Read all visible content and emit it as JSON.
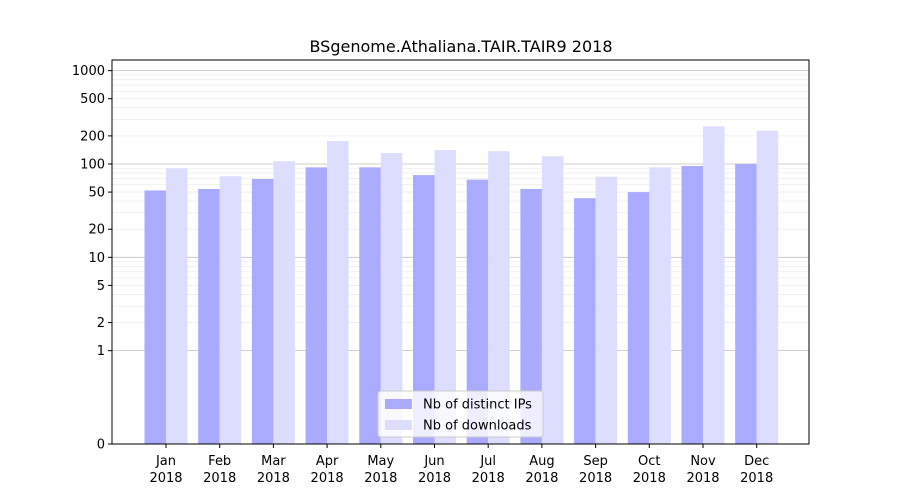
{
  "chart_data": {
    "type": "bar",
    "title": "BSgenome.Athaliana.TAIR.TAIR9 2018",
    "categories": [
      [
        "Jan",
        "2018"
      ],
      [
        "Feb",
        "2018"
      ],
      [
        "Mar",
        "2018"
      ],
      [
        "Apr",
        "2018"
      ],
      [
        "May",
        "2018"
      ],
      [
        "Jun",
        "2018"
      ],
      [
        "Jul",
        "2018"
      ],
      [
        "Aug",
        "2018"
      ],
      [
        "Sep",
        "2018"
      ],
      [
        "Oct",
        "2018"
      ],
      [
        "Nov",
        "2018"
      ],
      [
        "Dec",
        "2018"
      ]
    ],
    "series": [
      {
        "name": "Nb of distinct IPs",
        "color": "#aaaaff",
        "values": [
          52,
          54,
          69,
          92,
          92,
          76,
          68,
          54,
          43,
          50,
          95,
          100
        ]
      },
      {
        "name": "Nb of downloads",
        "color": "#ddddff",
        "values": [
          90,
          74,
          107,
          176,
          131,
          141,
          137,
          121,
          73,
          92,
          254,
          227
        ]
      }
    ],
    "yscale": "symlog",
    "yticks": [
      0,
      1,
      2,
      5,
      10,
      20,
      50,
      100,
      200,
      500,
      1000
    ],
    "ylim": [
      0,
      1300
    ],
    "grid": true,
    "legend_position": "bottom-center"
  }
}
